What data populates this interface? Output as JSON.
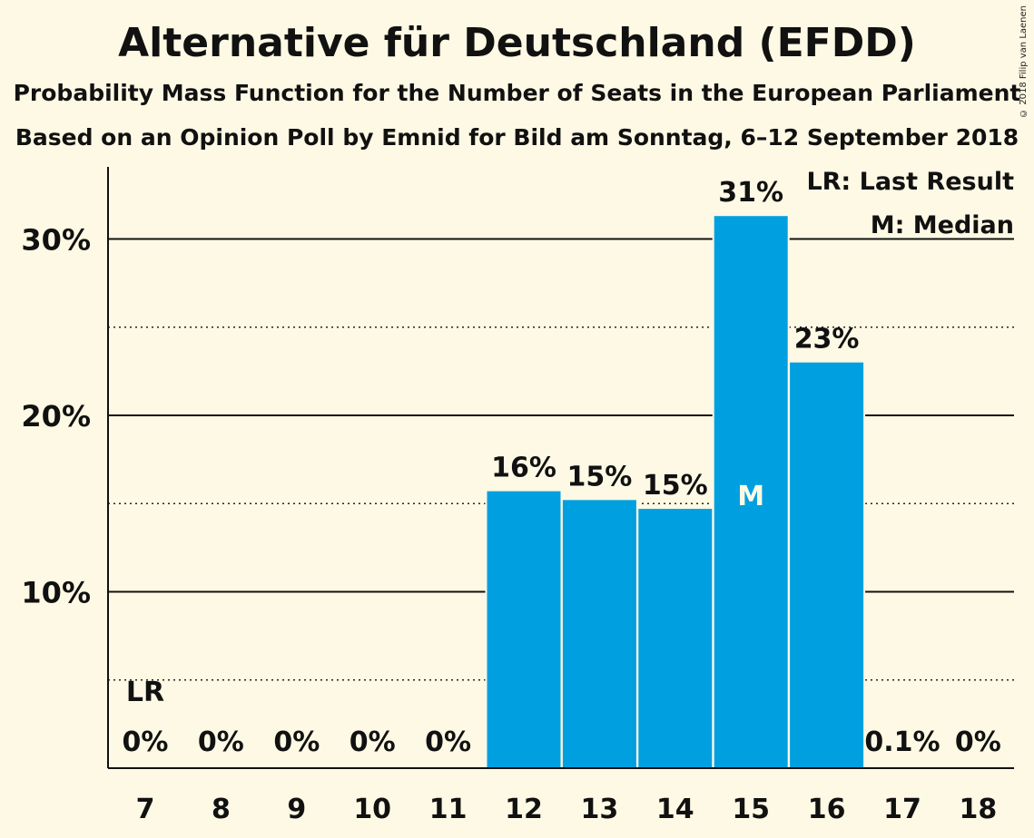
{
  "title": "Alternative für Deutschland (EFDD)",
  "subtitle": "Probability Mass Function for the Number of Seats in the European Parliament",
  "subtitle2": "Based on an Opinion Poll by Emnid for Bild am Sonntag, 6–12 September 2018",
  "copyright": "© 2018 Filip van Laenen",
  "legend": {
    "last_result": "LR: Last Result",
    "median": "M: Median"
  },
  "colors": {
    "bar": "#00a0e0",
    "background": "#fef9e4",
    "text": "#111111"
  },
  "chart_data": {
    "type": "bar",
    "categories": [
      "7",
      "8",
      "9",
      "10",
      "11",
      "12",
      "13",
      "14",
      "15",
      "16",
      "17",
      "18"
    ],
    "values": [
      0,
      0,
      0,
      0,
      0,
      15.7,
      15.2,
      14.7,
      31.3,
      23.0,
      0.1,
      0
    ],
    "value_labels": [
      "0%",
      "0%",
      "0%",
      "0%",
      "0%",
      "16%",
      "15%",
      "15%",
      "31%",
      "23%",
      "0.1%",
      "0%"
    ],
    "ylim": [
      0,
      34
    ],
    "yticks": [
      10,
      20,
      30
    ],
    "ytick_labels": [
      "10%",
      "20%",
      "30%"
    ],
    "minor_gridlines": [
      5,
      15,
      25
    ],
    "last_result_category": "7",
    "last_result_label": "LR",
    "median_category": "15",
    "median_label": "M",
    "legend_position": "top-right"
  }
}
